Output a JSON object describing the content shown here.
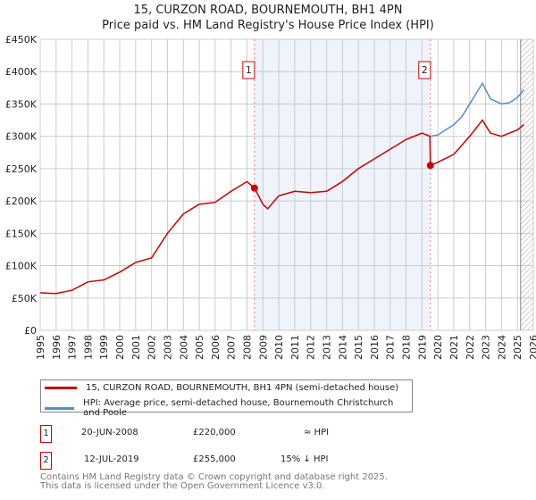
{
  "title": "15, CURZON ROAD, BOURNEMOUTH, BH1 4PN",
  "subtitle": "Price paid vs. HM Land Registry's House Price Index (HPI)",
  "chart_data": {
    "type": "line",
    "xlim": [
      1995,
      2026
    ],
    "ylim": [
      0,
      450000
    ],
    "yticks": [
      0,
      50000,
      100000,
      150000,
      200000,
      250000,
      300000,
      350000,
      400000,
      450000
    ],
    "ytick_labels": [
      "£0",
      "£50K",
      "£100K",
      "£150K",
      "£200K",
      "£250K",
      "£300K",
      "£350K",
      "£400K",
      "£450K"
    ],
    "xticks": [
      "1995",
      "1996",
      "1997",
      "1998",
      "1999",
      "2000",
      "2001",
      "2002",
      "2003",
      "2004",
      "2005",
      "2006",
      "2007",
      "2008",
      "2009",
      "2010",
      "2011",
      "2012",
      "2013",
      "2014",
      "2015",
      "2016",
      "2017",
      "2018",
      "2019",
      "2020",
      "2021",
      "2022",
      "2023",
      "2024",
      "2025",
      "2026"
    ],
    "grid": true,
    "series": [
      {
        "name": "15, CURZON ROAD, BOURNEMOUTH, BH1 4PN (semi-detached house)",
        "color": "#cc0000",
        "x": [
          1995,
          1996,
          1997,
          1998,
          1999,
          2000,
          2001,
          2002,
          2003,
          2004,
          2005,
          2006,
          2007,
          2008,
          2008.47,
          2009,
          2009.3,
          2010,
          2011,
          2012,
          2013,
          2014,
          2015,
          2016,
          2017,
          2018,
          2019,
          2019.5,
          2019.53,
          2020,
          2021,
          2022,
          2022.8,
          2023.3,
          2024,
          2025,
          2025.4
        ],
        "y": [
          58000,
          57000,
          62000,
          75000,
          78000,
          90000,
          105000,
          112000,
          150000,
          180000,
          195000,
          198000,
          215000,
          230000,
          220000,
          195000,
          188000,
          208000,
          215000,
          213000,
          215000,
          230000,
          250000,
          265000,
          280000,
          295000,
          305000,
          300000,
          255000,
          260000,
          272000,
          300000,
          325000,
          305000,
          300000,
          310000,
          318000
        ]
      },
      {
        "name": "HPI: Average price, semi-detached house, Bournemouth Christchurch and Poole",
        "color": "#5b8ccc",
        "x": [
          2019.53,
          2020,
          2020.5,
          2021,
          2021.5,
          2022,
          2022.8,
          2023.3,
          2024,
          2024.5,
          2025,
          2025.4
        ],
        "y": [
          300000,
          302000,
          310000,
          318000,
          330000,
          350000,
          382000,
          358000,
          350000,
          352000,
          360000,
          372000
        ]
      }
    ],
    "annotations": [
      {
        "label": "1",
        "x": 2008.47,
        "y": 220000
      },
      {
        "label": "2",
        "x": 2019.53,
        "y": 255000
      }
    ],
    "shaded_between": [
      2008.47,
      2019.53
    ],
    "hatched_after": 2025.2
  },
  "legend": [
    "15, CURZON ROAD, BOURNEMOUTH, BH1 4PN (semi-detached house)",
    "HPI: Average price, semi-detached house, Bournemouth Christchurch and Poole"
  ],
  "sales": [
    {
      "num": "1",
      "date": "20-JUN-2008",
      "price": "£220,000",
      "hpi": "≈ HPI"
    },
    {
      "num": "2",
      "date": "12-JUL-2019",
      "price": "£255,000",
      "hpi": "15% ↓ HPI"
    }
  ],
  "footer": [
    "Contains HM Land Registry data © Crown copyright and database right 2025.",
    "This data is licensed under the Open Government Licence v3.0."
  ]
}
